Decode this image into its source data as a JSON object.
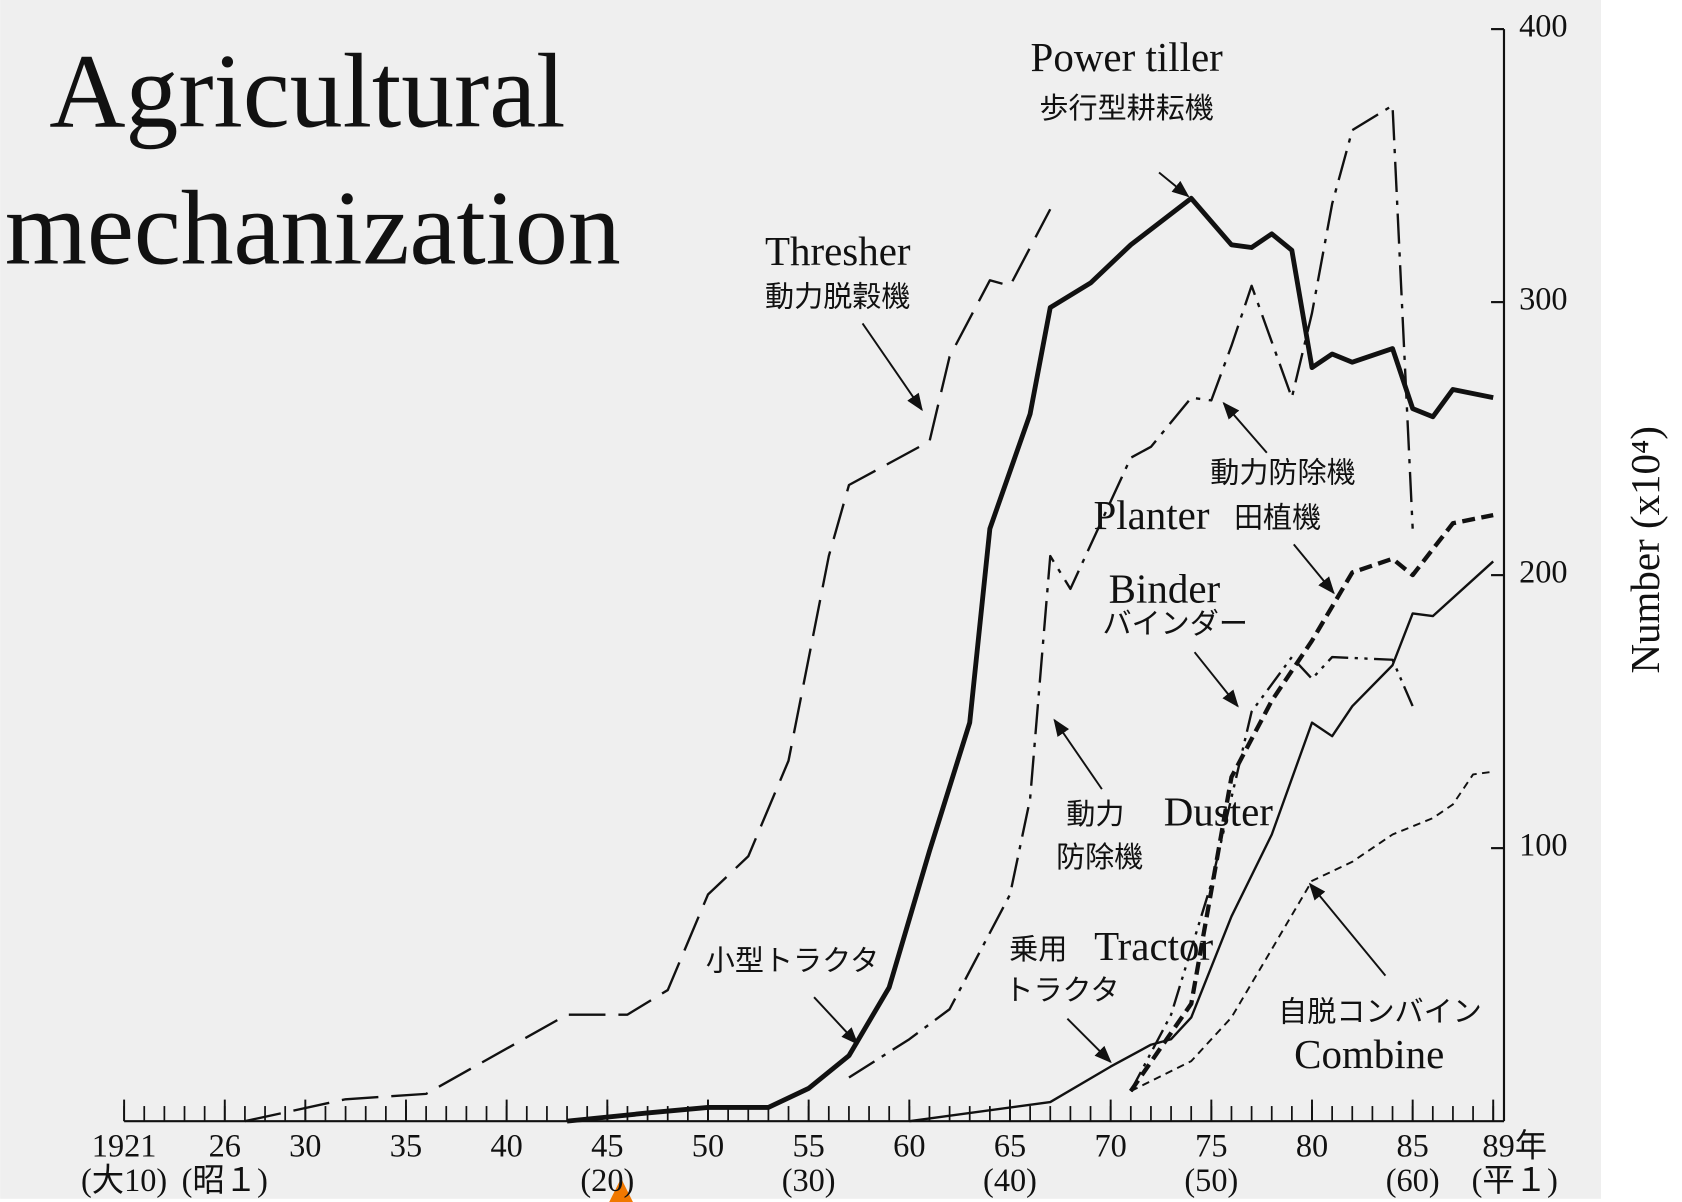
{
  "chart_data": {
    "type": "line",
    "title_lines": [
      "Agricultural",
      "mechanization"
    ],
    "ylabel": "Number (x10⁴)",
    "xlim": [
      1921,
      1989
    ],
    "ylim": [
      0,
      400
    ],
    "yticks": [
      100,
      200,
      300,
      400
    ],
    "xticks": [
      {
        "value": 1921,
        "label": "1921"
      },
      {
        "value": 1926,
        "label": "26"
      },
      {
        "value": 1930,
        "label": "30"
      },
      {
        "value": 1935,
        "label": "35"
      },
      {
        "value": 1940,
        "label": "40"
      },
      {
        "value": 1945,
        "label": "45"
      },
      {
        "value": 1950,
        "label": "50"
      },
      {
        "value": 1955,
        "label": "55"
      },
      {
        "value": 1960,
        "label": "60"
      },
      {
        "value": 1965,
        "label": "65"
      },
      {
        "value": 1970,
        "label": "70"
      },
      {
        "value": 1975,
        "label": "75"
      },
      {
        "value": 1980,
        "label": "80"
      },
      {
        "value": 1985,
        "label": "85"
      },
      {
        "value": 1989,
        "label": "89年"
      }
    ],
    "xticks_era": [
      {
        "value": 1921,
        "label": "(大10)"
      },
      {
        "value": 1926,
        "label": "(昭１)"
      },
      {
        "value": 1945,
        "label": "(20)"
      },
      {
        "value": 1955,
        "label": "(30)"
      },
      {
        "value": 1965,
        "label": "(40)"
      },
      {
        "value": 1975,
        "label": "(50)"
      },
      {
        "value": 1985,
        "label": "(60)"
      },
      {
        "value": 1989,
        "label": "(平１)"
      }
    ],
    "xticks_minor": [
      1921,
      1922,
      1923,
      1924,
      1925,
      1926,
      1927,
      1928,
      1929,
      1930,
      1931,
      1932,
      1933,
      1934,
      1935,
      1936,
      1937,
      1938,
      1939,
      1940,
      1941,
      1942,
      1943,
      1944,
      1945,
      1946,
      1947,
      1948,
      1949,
      1950,
      1951,
      1952,
      1953,
      1954,
      1955,
      1956,
      1957,
      1958,
      1959,
      1960,
      1961,
      1962,
      1963,
      1964,
      1965,
      1966,
      1967,
      1968,
      1969,
      1970,
      1971,
      1972,
      1973,
      1974,
      1975,
      1976,
      1977,
      1978,
      1979,
      1980,
      1981,
      1982,
      1983,
      1984,
      1985,
      1986,
      1987,
      1988,
      1989
    ],
    "series": [
      {
        "labels": [
          "Thresher",
          "動力脱穀機"
        ],
        "color": "#111111",
        "dash": "34 12",
        "width": 2.2,
        "x": [
          1927,
          1932,
          1936,
          1943,
          1946,
          1948,
          1950,
          1952,
          1954,
          1956,
          1957,
          1961,
          1962,
          1964,
          1965,
          1967
        ],
        "values": [
          0,
          8,
          10,
          39,
          39,
          48,
          83,
          97,
          132,
          207,
          233,
          249,
          280,
          308,
          306,
          334
        ]
      },
      {
        "labels": [
          "Power tiller",
          "歩行型耕耘機",
          "小型トラクタ"
        ],
        "color": "#111111",
        "dash": "none",
        "width": 4.5,
        "x": [
          1943,
          1947,
          1950,
          1953,
          1955,
          1957,
          1959,
          1961,
          1963,
          1964,
          1966,
          1967,
          1969,
          1971,
          1974,
          1976,
          1977,
          1978,
          1979,
          1980,
          1981,
          1982,
          1984,
          1985,
          1986,
          1987,
          1989
        ],
        "values": [
          0,
          3,
          5,
          5,
          12,
          24,
          49,
          99,
          146,
          217,
          259,
          298,
          307,
          321,
          338,
          321,
          320,
          325,
          319,
          276,
          281,
          278,
          283,
          261,
          258,
          268,
          265
        ]
      },
      {
        "labels": [
          "動力防除機",
          "動力",
          "防除機",
          "Duster"
        ],
        "color": "#111111",
        "dash": "28 8 4 8",
        "width": 2.2,
        "x": [
          1957,
          1960,
          1962,
          1965,
          1966,
          1967,
          1968,
          1971,
          1972,
          1974,
          1975,
          1976,
          1977,
          1979,
          1980,
          1981,
          1982,
          1984,
          1985
        ],
        "values": [
          16,
          30,
          41,
          83,
          118,
          207,
          195,
          243,
          247,
          265,
          264,
          284,
          306,
          265,
          296,
          336,
          363,
          372,
          217
        ]
      },
      {
        "labels": [
          "Binder",
          "バインダー"
        ],
        "color": "#111111",
        "dash": "20 6 3 6 3 6",
        "width": 2.2,
        "x": [
          1971,
          1973,
          1975,
          1977,
          1978,
          1979,
          1980,
          1981,
          1984,
          1985
        ],
        "values": [
          11,
          39,
          87,
          150,
          160,
          170,
          162,
          170,
          169,
          152
        ]
      },
      {
        "labels": [
          "Planter",
          "田植機"
        ],
        "color": "#111111",
        "dash": "12 6",
        "width": 4,
        "x": [
          1971,
          1974,
          1976,
          1978,
          1980,
          1982,
          1984,
          1985,
          1987,
          1989
        ],
        "values": [
          11,
          43,
          126,
          154,
          176,
          201,
          206,
          200,
          219,
          222
        ]
      },
      {
        "labels": [
          "乗用",
          "Tractor",
          "トラクタ"
        ],
        "color": "#111111",
        "dash": "none",
        "width": 2.2,
        "x": [
          1960,
          1967,
          1970,
          1972,
          1973,
          1974,
          1976,
          1978,
          1980,
          1981,
          1982,
          1984,
          1985,
          1986,
          1989
        ],
        "values": [
          0,
          7,
          20,
          28,
          30,
          38,
          75,
          105,
          146,
          141,
          152,
          167,
          186,
          185,
          205
        ]
      },
      {
        "labels": [
          "自脱コンバイン",
          "Combine"
        ],
        "color": "#111111",
        "dash": "7 5",
        "width": 1.8,
        "x": [
          1971,
          1974,
          1976,
          1978,
          1980,
          1982,
          1984,
          1986,
          1987,
          1988,
          1989
        ],
        "values": [
          11,
          22,
          38,
          63,
          88,
          95,
          105,
          111,
          116,
          127,
          128
        ]
      }
    ]
  }
}
